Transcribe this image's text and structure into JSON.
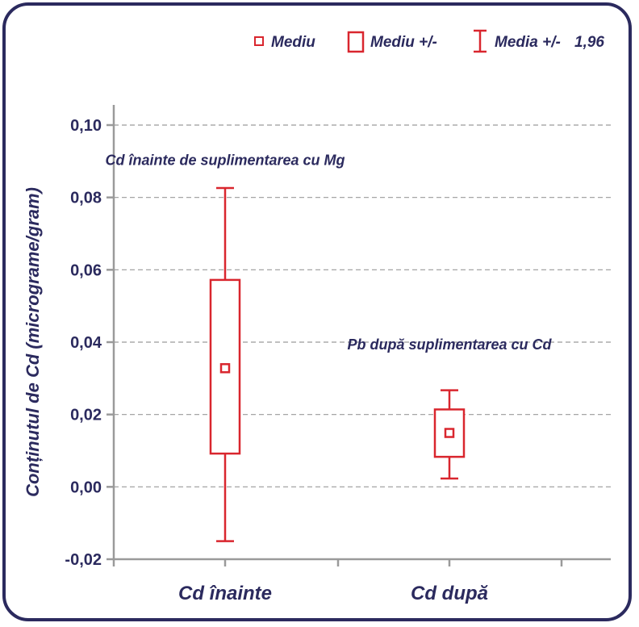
{
  "legend": {
    "mean_label": "Mediu",
    "box_label": "Mediu +/-",
    "whisker_label": "Media +/-",
    "whisker_factor": "1,96"
  },
  "colors": {
    "accent": "#d9262e",
    "text": "#2b2a5e",
    "axis": "#9a9a9a",
    "grid": "#9a9a9a"
  },
  "chart_data": {
    "type": "box",
    "ylabel": "Conținutul de Cd (micrograme/gram)",
    "ylim": [
      -0.02,
      0.1
    ],
    "yticks": [
      -0.02,
      0.0,
      0.02,
      0.04,
      0.06,
      0.08,
      0.1
    ],
    "ytick_labels": [
      "-0,02",
      "0,00",
      "0,02",
      "0,04",
      "0,06",
      "0,08",
      "0,10"
    ],
    "grid": "horizontal dashed",
    "legend_position": "top",
    "categories": [
      "Cd înainte",
      "Cd după"
    ],
    "series": [
      {
        "category": "Cd înainte",
        "mean": 0.0328,
        "box_low": 0.0092,
        "box_high": 0.0572,
        "whisker_low": -0.015,
        "whisker_high": 0.0826
      },
      {
        "category": "Cd după",
        "mean": 0.0149,
        "box_low": 0.0083,
        "box_high": 0.0214,
        "whisker_low": 0.0023,
        "whisker_high": 0.0267
      }
    ],
    "annotations": [
      {
        "text": "Cd înainte de suplimentarea cu Mg",
        "category": "Cd înainte",
        "y": 0.089
      },
      {
        "text": "Pb după suplimentarea cu Cd",
        "category": "Cd după",
        "y": 0.038
      }
    ]
  }
}
